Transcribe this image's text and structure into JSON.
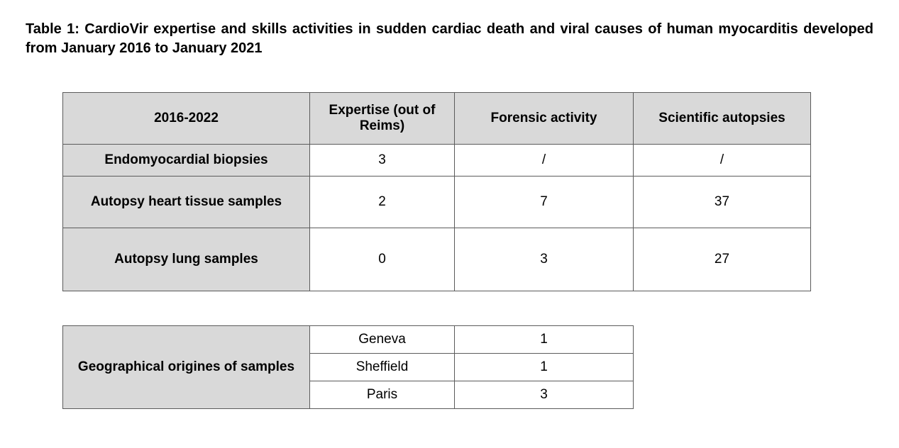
{
  "title": "Table 1: CardioVir expertise and skills activities in sudden cardiac death and viral causes of human myocarditis developed from January 2016 to January 2021",
  "table1": {
    "headers": {
      "c0": "2016-2022",
      "c1": "Expertise (out of Reims)",
      "c2": "Forensic activity",
      "c3": "Scientific autopsies"
    },
    "rows": [
      {
        "label": "Endomyocardial biopsies",
        "c1": "3",
        "c2": "/",
        "c3": "/"
      },
      {
        "label": "Autopsy heart tissue samples",
        "c1": "2",
        "c2": "7",
        "c3": "37"
      },
      {
        "label": "Autopsy lung samples",
        "c1": "0",
        "c2": "3",
        "c3": "27"
      }
    ]
  },
  "table2": {
    "label": "Geographical origines of samples",
    "rows": [
      {
        "loc": "Geneva",
        "n": "1"
      },
      {
        "loc": "Sheffield",
        "n": "1"
      },
      {
        "loc": "Paris",
        "n": "3"
      }
    ]
  },
  "style": {
    "header_bg": "#d9d9d9",
    "border_color": "#5b5b5b",
    "text_color": "#000000",
    "font_family": "Century Gothic"
  }
}
